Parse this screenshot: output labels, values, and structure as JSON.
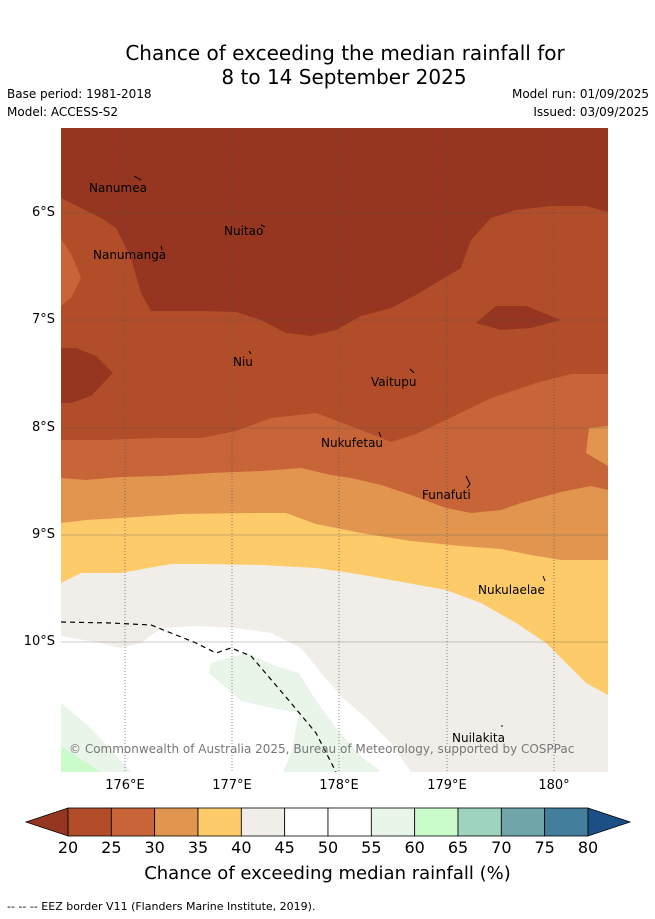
{
  "title": {
    "line1": "Chance of exceeding the median rainfall for",
    "line2": "8 to 14 September 2025"
  },
  "meta": {
    "base_period": "Base period: 1981-2018",
    "model": "Model: ACCESS-S2",
    "model_run": "Model run: 01/09/2025",
    "issued": "Issued: 03/09/2025"
  },
  "map": {
    "lat_labels": [
      "6°S",
      "7°S",
      "8°S",
      "9°S",
      "10°S"
    ],
    "lon_labels": [
      "176°E",
      "177°E",
      "178°E",
      "179°E",
      "180°"
    ],
    "islands": [
      {
        "name": "Nanumea"
      },
      {
        "name": "Nuitao"
      },
      {
        "name": "Nanumanga"
      },
      {
        "name": "Niu"
      },
      {
        "name": "Vaitupu"
      },
      {
        "name": "Nukufetau"
      },
      {
        "name": "Funafuti"
      },
      {
        "name": "Nukulaelae"
      },
      {
        "name": "Nuilakita"
      }
    ],
    "copyright": "© Commonwealth of Australia 2025, Bureau of Meteorology, supported by COSPPac"
  },
  "colorbar": {
    "ticks": [
      "20",
      "25",
      "30",
      "35",
      "40",
      "45",
      "50",
      "55",
      "60",
      "65",
      "70",
      "75",
      "80"
    ],
    "colors": [
      "#973620",
      "#B24D29",
      "#C86538",
      "#E2954E",
      "#FDCB6A",
      "#F1EEE9",
      "#FFFFFF",
      "#FFFFFF",
      "#EAF5EA",
      "#CBFBCB",
      "#9ED3BD",
      "#70A6AA",
      "#437F9C",
      "#1B4F86"
    ],
    "label": "Chance of exceeding median rainfall (%)"
  },
  "footnote": "--  --  -- EEZ border V11 (Flanders Marine Institute, 2019)."
}
